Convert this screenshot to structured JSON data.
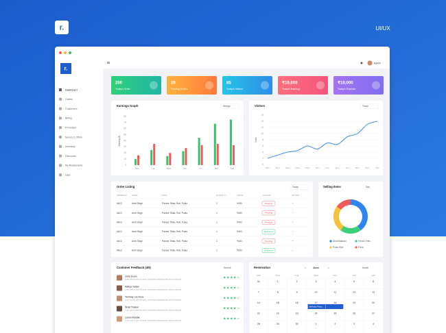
{
  "header": {
    "logo": "r.",
    "tag": "UI/UX"
  },
  "topbar": {
    "user": "Admin"
  },
  "sidebar": {
    "logo": "r.",
    "items": [
      "Dashboard",
      "Orders",
      "Customers",
      "Billing",
      "Promotion",
      "Menus & Offers",
      "Inventory",
      "Discounts",
      "My Restaurants",
      "User"
    ]
  },
  "stats": [
    {
      "value": "200",
      "label": "Today's Order",
      "colors": [
        "#2fd07a",
        "#21b5a5"
      ]
    },
    {
      "value": "20",
      "label": "Pending Orders",
      "colors": [
        "#ffb23e",
        "#ff7a3a"
      ]
    },
    {
      "value": "85",
      "label": "Today's Visitors",
      "colors": [
        "#27c3e6",
        "#2d8ee8"
      ]
    },
    {
      "value": "₹10,000",
      "label": "Today's Earnings",
      "colors": [
        "#ff6f7d",
        "#f2557c"
      ]
    },
    {
      "value": "₹10,000",
      "label": "Today's Expense",
      "colors": [
        "#a473f0",
        "#7f6ff0"
      ]
    }
  ],
  "earnings": {
    "title": "Earnings Graph",
    "filter": "Weekly",
    "axis_label": "Earning ($)",
    "ylim": [
      0,
      80
    ],
    "yticks": [
      0,
      10,
      20,
      30,
      40,
      50,
      60,
      70,
      80
    ],
    "categories": [
      "Mon",
      "Tue",
      "Wed",
      "Thu",
      "Fri",
      "Sat",
      "Sun"
    ],
    "series": [
      {
        "color": "#34c46d",
        "values": [
          10,
          25,
          15,
          23,
          45,
          68,
          75
        ]
      },
      {
        "color": "#ef5a5a",
        "values": [
          16,
          35,
          20,
          28,
          33,
          35,
          33
        ]
      }
    ]
  },
  "visitors": {
    "title": "Visitors",
    "filter": "Today",
    "axis_label": "Visits",
    "ylim": [
      0,
      16
    ],
    "yticks": [
      0,
      2,
      4,
      6,
      8,
      10,
      12,
      14,
      16
    ],
    "categories": [
      "8am",
      "9am",
      "10am",
      "11am",
      "12pm",
      "1pm",
      "2pm",
      "3pm",
      "4pm",
      "5pm",
      "6pm",
      "7pm"
    ],
    "color": "#3b8cf0",
    "values": [
      2,
      3,
      4,
      4.5,
      6,
      5,
      7,
      6.5,
      9,
      10,
      13,
      14
    ]
  },
  "orders": {
    "title": "Order Listing",
    "filter": "Today",
    "columns": [
      "ORDER ID",
      "NAME",
      "ITEM",
      "QUANTITY",
      "PRICE",
      "STATUS",
      "ACTION"
    ],
    "rows": [
      [
        "#A12",
        "Amit Singh",
        "Paneer Tikka, Roti, Pulao",
        "1",
        "₹400",
        "Pending",
        "···"
      ],
      [
        "#A12",
        "Amit Singh",
        "Paneer Tikka, Roti, Pulao",
        "1",
        "₹400",
        "Pending",
        "···"
      ],
      [
        "#A12",
        "Amit Singh",
        "Paneer Tikka, Roti, Pulao",
        "1",
        "₹400",
        "Pending",
        "···"
      ],
      [
        "#A12",
        "Amit Singh",
        "Paneer Tikka, Roti, Pulao",
        "1",
        "₹400",
        "Delivered",
        "···"
      ],
      [
        "#A12",
        "Amit Singh",
        "Paneer Tikka, Roti, Pulao",
        "1",
        "₹400",
        "Pending",
        "···"
      ],
      [
        "#A12",
        "Amit Singh",
        "Paneer Tikka, Roti, Pulao",
        "1",
        "₹400",
        "Delivered",
        "···"
      ]
    ]
  },
  "selling": {
    "title": "Selling Items",
    "filter": "Day",
    "items": [
      {
        "name": "Dhal Makhani",
        "value": 40,
        "color": "#2f86f0"
      },
      {
        "name": "French Fries",
        "value": 20,
        "color": "#3ccf7a"
      },
      {
        "name": "Pulao Rice",
        "value": 25,
        "color": "#f5c33b"
      },
      {
        "name": "Pizza",
        "value": 15,
        "color": "#ef5a5a"
      }
    ]
  },
  "feedback": {
    "title": "Customer Feedback (4/5)",
    "filter": "Recent",
    "items": [
      {
        "name": "John Gunn",
        "text": "Lorem ipsum dolor sit amet, consectetur adipiscing elit, sed do eiusmod",
        "stars": 4
      },
      {
        "name": "Aditya Yadav",
        "text": "Lorem ipsum dolor sit amet, consectetur adipiscing elit, sed do eiusmod",
        "stars": 4
      },
      {
        "name": "Tanmay Lal Jnsa",
        "text": "Lorem ipsum dolor sit amet, consectetur adipiscing elit, sed do eiusmod",
        "stars": 4
      },
      {
        "name": "Shail Thakur",
        "text": "Lorem ipsum dolor sit amet, consectetur adipiscing elit, sed do eiusmod",
        "stars": 4
      },
      {
        "name": "Laxmi Modak",
        "text": "Lorem ipsum dolor sit amet, consectetur adipiscing elit, sed do eiusmod",
        "stars": 4
      }
    ]
  },
  "reservation": {
    "title": "Reservation",
    "month": "June",
    "filter": "Month",
    "days": [
      "SUN",
      "MON",
      "TUE",
      "WED",
      "THU",
      "FRI",
      "SAT"
    ],
    "weeks": [
      [
        "31",
        "1",
        "2",
        "3",
        "4",
        "5",
        "6"
      ],
      [
        "7",
        "8",
        "9",
        "10",
        "11",
        "12",
        "13"
      ],
      [
        "14",
        "15",
        "16",
        "17",
        "18",
        "19",
        "20"
      ],
      [
        "21",
        "22",
        "23",
        "24",
        "25",
        "26",
        "27"
      ],
      [
        "28",
        "29",
        "30",
        "1",
        "2",
        "3",
        "4"
      ]
    ],
    "event": "Birthday Party"
  }
}
